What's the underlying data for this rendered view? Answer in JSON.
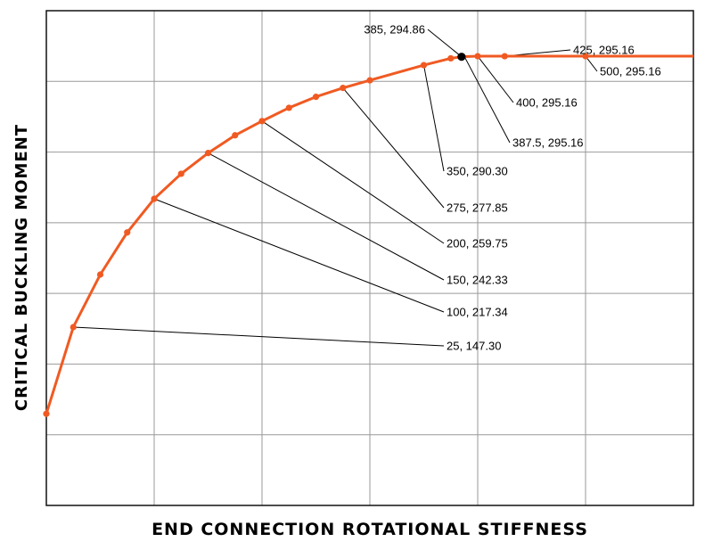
{
  "chart_data": {
    "type": "line",
    "title": "",
    "xlabel": "END CONNECTION ROTATIONAL STIFFNESS",
    "ylabel": "CRITICAL BUCKLING MOMENT",
    "xlim": [
      0,
      600
    ],
    "ylim": [
      50,
      320
    ],
    "grid": true,
    "line_color": "#f05a22",
    "highlight_color": "#000000",
    "series": [
      {
        "x": [
          0,
          25,
          50,
          75,
          100,
          125,
          150,
          175,
          200,
          225,
          250,
          275,
          300,
          350,
          375,
          385,
          400,
          425,
          500,
          600
        ],
        "y": [
          100.0,
          147.3,
          176.0,
          199.0,
          217.34,
          231.0,
          242.33,
          252.0,
          259.75,
          267.0,
          273.0,
          277.85,
          282.0,
          290.3,
          294.0,
          294.86,
          295.16,
          295.16,
          295.16,
          295.16
        ],
        "markers": [
          0,
          25,
          50,
          75,
          100,
          125,
          150,
          175,
          200,
          225,
          250,
          275,
          300,
          350,
          375,
          400,
          425,
          500
        ]
      }
    ],
    "highlight_point": {
      "x": 385,
      "y": 294.86
    },
    "annotations": [
      {
        "x": 385,
        "y": 294.86,
        "text": "385, 294.86"
      },
      {
        "x": 425,
        "y": 295.16,
        "text": "425, 295.16"
      },
      {
        "x": 500,
        "y": 295.16,
        "text": "500, 295.16"
      },
      {
        "x": 400,
        "y": 295.16,
        "text": "400, 295.16"
      },
      {
        "x": 387.5,
        "y": 295.16,
        "text": "387.5, 295.16"
      },
      {
        "x": 350,
        "y": 290.3,
        "text": "350, 290.30"
      },
      {
        "x": 275,
        "y": 277.85,
        "text": "275, 277.85"
      },
      {
        "x": 200,
        "y": 259.75,
        "text": "200, 259.75"
      },
      {
        "x": 150,
        "y": 242.33,
        "text": "150, 242.33"
      },
      {
        "x": 100,
        "y": 217.34,
        "text": "100, 217.34"
      },
      {
        "x": 25,
        "y": 147.3,
        "text": "25, 147.30"
      }
    ]
  }
}
